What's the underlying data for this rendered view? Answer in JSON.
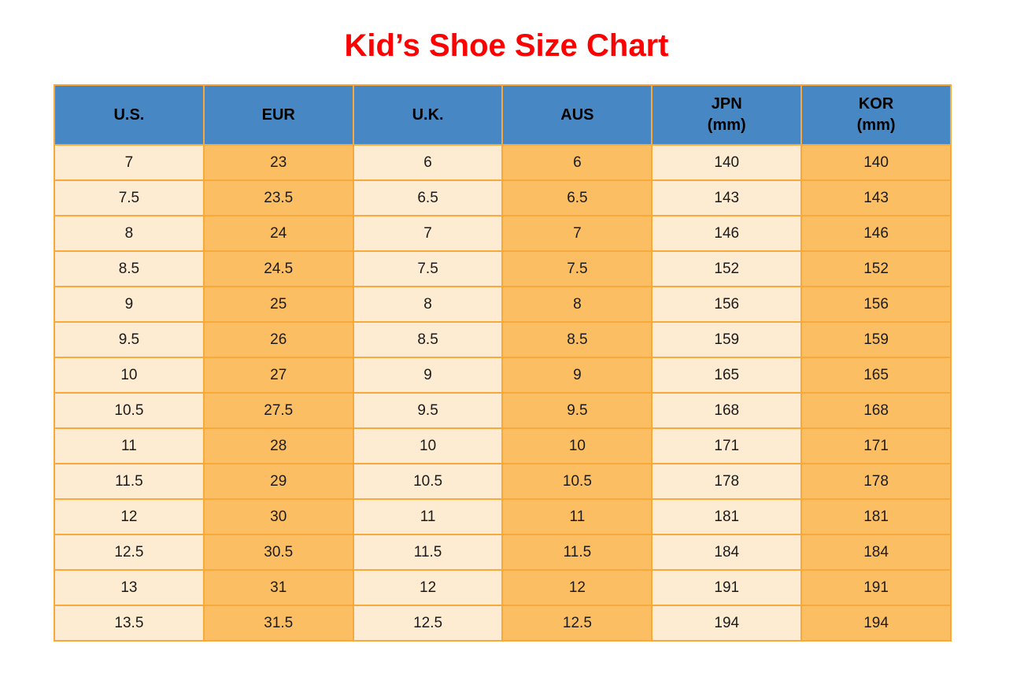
{
  "title": "Kid’s Shoe Size Chart",
  "colors": {
    "title_text": "#FE0000",
    "header_bg": "#4788C4",
    "header_text": "#000000",
    "light_cell_bg": "#FDEBD2",
    "orange_cell_bg": "#FCBE62",
    "border": "#F9A83C",
    "cell_text": "#1B1B1B",
    "page_bg": "#FFFFFF"
  },
  "table": {
    "column_keys": [
      "us",
      "eur",
      "uk",
      "aus",
      "jpn",
      "kor"
    ],
    "columns": [
      {
        "line1": "U.S.",
        "line2": ""
      },
      {
        "line1": "EUR",
        "line2": ""
      },
      {
        "line1": "U.K.",
        "line2": ""
      },
      {
        "line1": "AUS",
        "line2": ""
      },
      {
        "line1": "JPN",
        "line2": "(mm)"
      },
      {
        "line1": "KOR",
        "line2": "(mm)"
      }
    ],
    "rows": [
      [
        "7",
        "23",
        "6",
        "6",
        "140",
        "140"
      ],
      [
        "7.5",
        "23.5",
        "6.5",
        "6.5",
        "143",
        "143"
      ],
      [
        "8",
        "24",
        "7",
        "7",
        "146",
        "146"
      ],
      [
        "8.5",
        "24.5",
        "7.5",
        "7.5",
        "152",
        "152"
      ],
      [
        "9",
        "25",
        "8",
        "8",
        "156",
        "156"
      ],
      [
        "9.5",
        "26",
        "8.5",
        "8.5",
        "159",
        "159"
      ],
      [
        "10",
        "27",
        "9",
        "9",
        "165",
        "165"
      ],
      [
        "10.5",
        "27.5",
        "9.5",
        "9.5",
        "168",
        "168"
      ],
      [
        "11",
        "28",
        "10",
        "10",
        "171",
        "171"
      ],
      [
        "11.5",
        "29",
        "10.5",
        "10.5",
        "178",
        "178"
      ],
      [
        "12",
        "30",
        "11",
        "11",
        "181",
        "181"
      ],
      [
        "12.5",
        "30.5",
        "11.5",
        "11.5",
        "184",
        "184"
      ],
      [
        "13",
        "31",
        "12",
        "12",
        "191",
        "191"
      ],
      [
        "13.5",
        "31.5",
        "12.5",
        "12.5",
        "194",
        "194"
      ]
    ]
  },
  "chart_data": {
    "type": "table",
    "title": "Kid’s Shoe Size Chart",
    "columns": [
      "U.S.",
      "EUR",
      "U.K.",
      "AUS",
      "JPN (mm)",
      "KOR (mm)"
    ],
    "rows": [
      [
        7,
        23,
        6,
        6,
        140,
        140
      ],
      [
        7.5,
        23.5,
        6.5,
        6.5,
        143,
        143
      ],
      [
        8,
        24,
        7,
        7,
        146,
        146
      ],
      [
        8.5,
        24.5,
        7.5,
        7.5,
        152,
        152
      ],
      [
        9,
        25,
        8,
        8,
        156,
        156
      ],
      [
        9.5,
        26,
        8.5,
        8.5,
        159,
        159
      ],
      [
        10,
        27,
        9,
        9,
        165,
        165
      ],
      [
        10.5,
        27.5,
        9.5,
        9.5,
        168,
        168
      ],
      [
        11,
        28,
        10,
        10,
        171,
        171
      ],
      [
        11.5,
        29,
        10.5,
        10.5,
        178,
        178
      ],
      [
        12,
        30,
        11,
        11,
        181,
        181
      ],
      [
        12.5,
        30.5,
        11.5,
        11.5,
        184,
        184
      ],
      [
        13,
        31,
        12,
        12,
        191,
        191
      ],
      [
        13.5,
        31.5,
        12.5,
        12.5,
        194,
        194
      ]
    ],
    "layout": {
      "header_fill": "blue",
      "column_fill_pattern": [
        "light",
        "orange",
        "light",
        "orange",
        "light",
        "orange"
      ],
      "grid": "on"
    }
  }
}
